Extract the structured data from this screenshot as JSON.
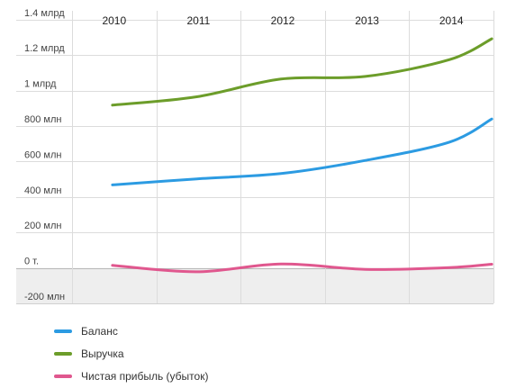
{
  "chart_data": {
    "type": "line",
    "categories": [
      "2010",
      "2011",
      "2012",
      "2013",
      "2014"
    ],
    "x": [
      2009.98,
      2010.98,
      2011.98,
      2012.98,
      2013.98,
      2014.48
    ],
    "ylim": [
      -200000000,
      1450000000
    ],
    "yticks": [
      {
        "value": 1400000000,
        "label": "1.4 млрд"
      },
      {
        "value": 1200000000,
        "label": "1.2 млрд"
      },
      {
        "value": 1000000000,
        "label": "1 млрд"
      },
      {
        "value": 800000000,
        "label": "800 млн"
      },
      {
        "value": 600000000,
        "label": "600 млн"
      },
      {
        "value": 400000000,
        "label": "400 млн"
      },
      {
        "value": 200000000,
        "label": "200 млн"
      },
      {
        "value": 0,
        "label": "0 т."
      },
      {
        "value": -200000000,
        "label": "-200 млн"
      }
    ],
    "grid": true,
    "negative_region_shaded": true,
    "legend_position": "bottom-left",
    "series": [
      {
        "name": "Баланс",
        "color": "#2c9be2",
        "values": [
          468000000,
          502000000,
          532000000,
          606000000,
          710000000,
          840000000
        ]
      },
      {
        "name": "Выручка",
        "color": "#6c9d2a",
        "values": [
          918000000,
          965000000,
          1065000000,
          1080000000,
          1175000000,
          1292000000
        ]
      },
      {
        "name": "Чистая прибыль (убыток)",
        "color": "#e0578e",
        "values": [
          14000000,
          -22000000,
          22000000,
          -8000000,
          2000000,
          21000000
        ]
      }
    ]
  }
}
